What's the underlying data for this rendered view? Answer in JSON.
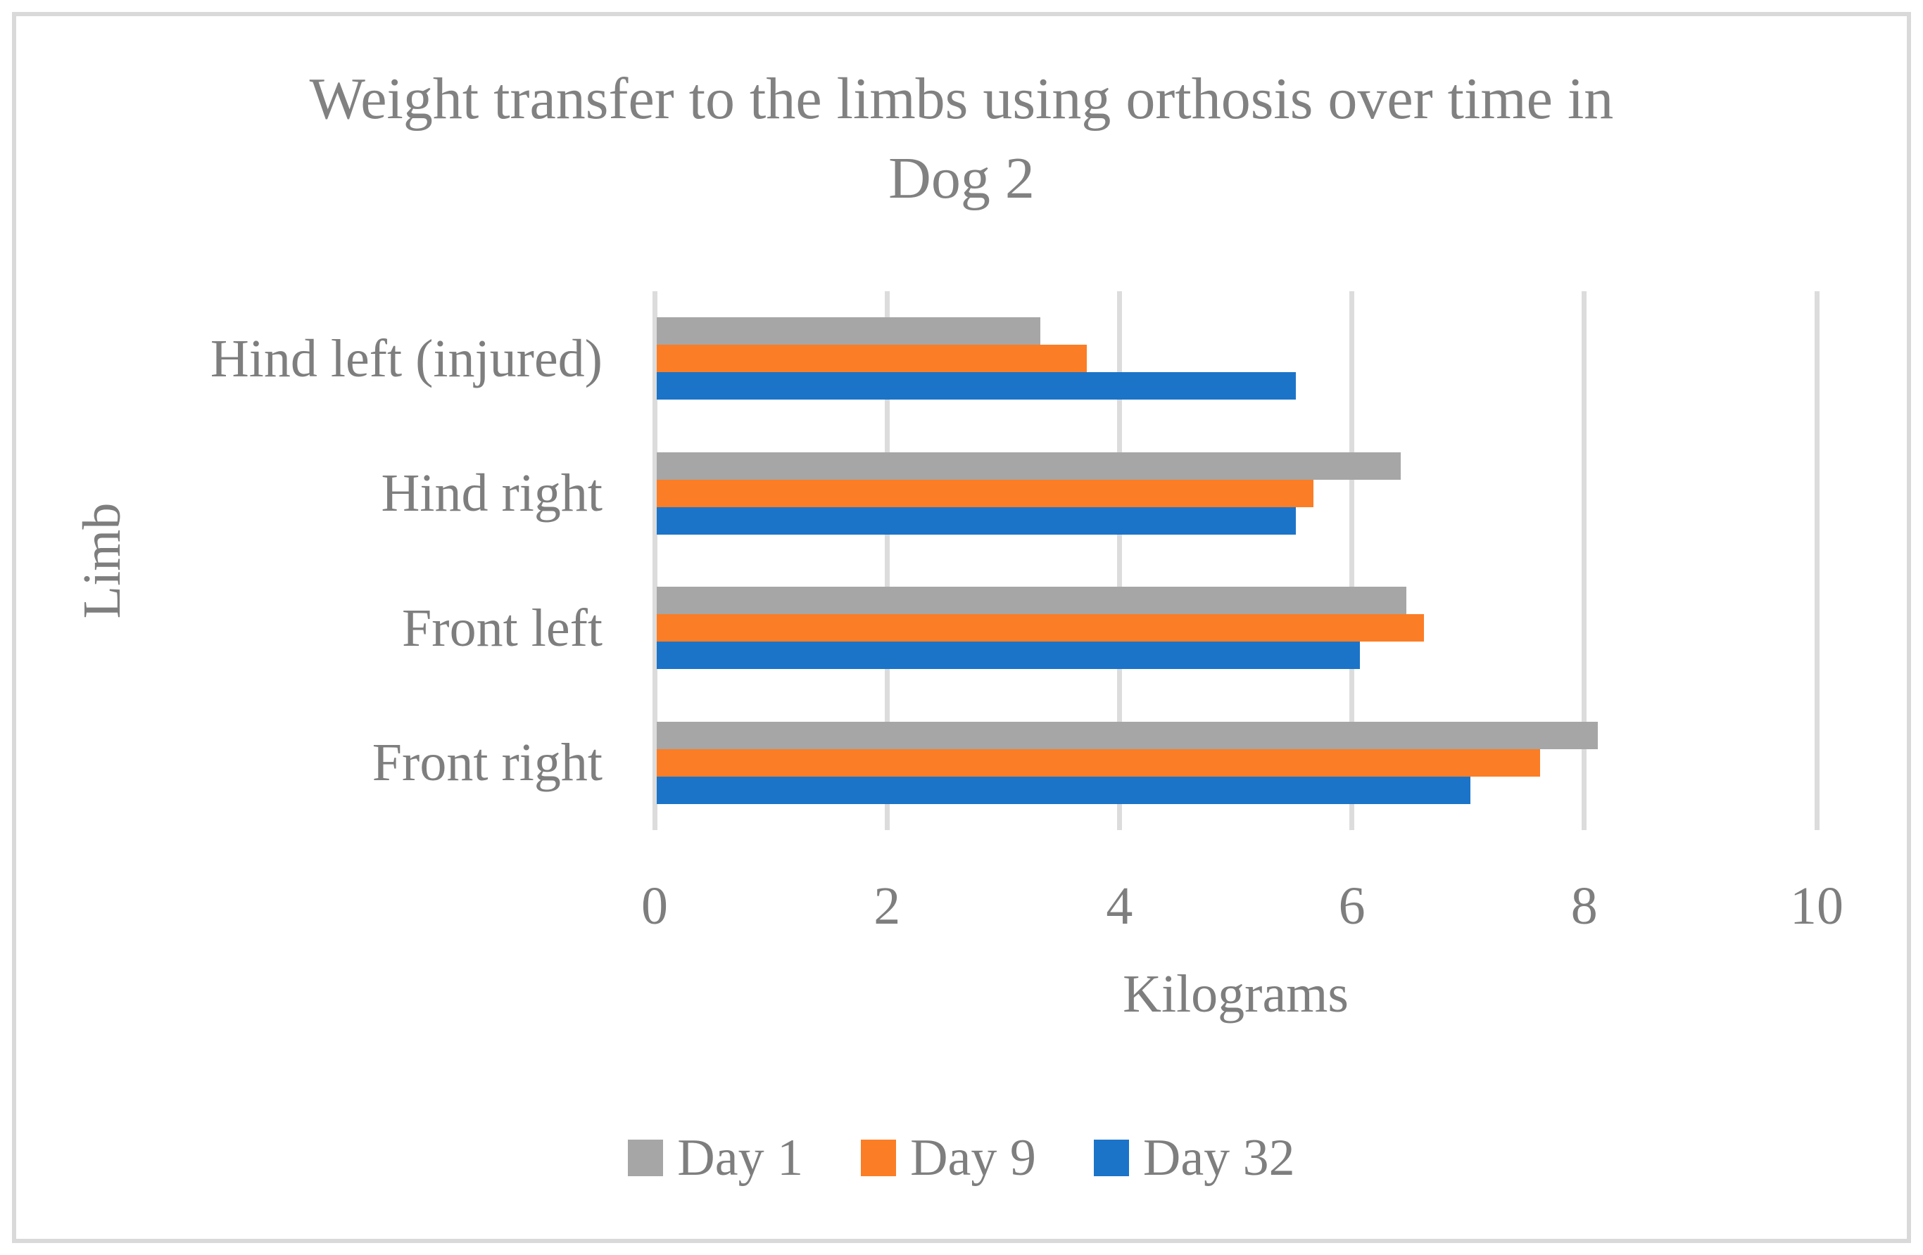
{
  "figure": {
    "title_line1": "Weight transfer to the limbs using orthosis over time in",
    "title_line2": "Dog 2",
    "x_axis_title": "Kilograms",
    "y_axis_title": "Limb"
  },
  "chart_data": {
    "type": "bar",
    "orientation": "horizontal",
    "title": "Weight transfer to the limbs using orthosis over time in Dog 2",
    "xlabel": "Kilograms",
    "ylabel": "Limb",
    "categories": [
      "Hind left (injured)",
      "Hind right",
      "Front left",
      "Front right"
    ],
    "series": [
      {
        "name": "Day 1",
        "color": "#A6A6A6",
        "values": [
          3.3,
          6.4,
          6.45,
          8.1
        ]
      },
      {
        "name": "Day 9",
        "color": "#FB7D26",
        "values": [
          3.7,
          5.65,
          6.6,
          7.6
        ]
      },
      {
        "name": "Day 32",
        "color": "#1B74C8",
        "values": [
          5.5,
          5.5,
          6.05,
          7.0
        ]
      }
    ],
    "xlim": [
      0,
      10
    ],
    "xticks": [
      0,
      2,
      4,
      6,
      8,
      10
    ],
    "grid": true,
    "legend_position": "bottom",
    "gridline_color": "#DCDCDC",
    "border_color": "#D9D9D9",
    "text_color": "#7E7E7E"
  }
}
